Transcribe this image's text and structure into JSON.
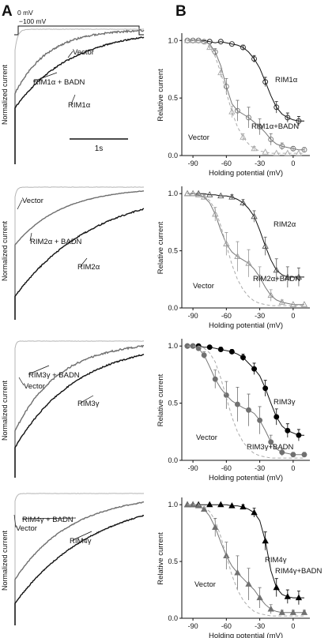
{
  "panel_labels": {
    "a": "A",
    "b": "B"
  },
  "protocol": {
    "top_label": "0 mV",
    "hold_label": "−100 mV"
  },
  "scale_bar_label": "1s",
  "trace_ylabel": "Normalized current",
  "colors": {
    "vector": "#b5b5b5",
    "badn": "#6e6e6e",
    "rim": "#111111"
  },
  "trace_rows": [
    {
      "labels": {
        "vector": "Vector",
        "badn": "RIM1α + BADN",
        "rim": "RIM1α"
      }
    },
    {
      "labels": {
        "vector": "Vector",
        "badn": "RIM2α + BADN",
        "rim": "RIM2α"
      }
    },
    {
      "labels": {
        "vector": "Vector",
        "badn": "RIM3γ + BADN",
        "rim": "RIM3γ"
      }
    },
    {
      "labels": {
        "vector": "Vector",
        "badn": "RIM4γ + BADN",
        "rim": "RIM4γ"
      }
    }
  ],
  "chart_data": [
    {
      "type": "scatter",
      "xlabel": "Holding potential (mV)",
      "ylabel": "Relative current",
      "xlim": [
        -100,
        15
      ],
      "ylim": [
        0,
        1.05
      ],
      "xticks": [
        "-90",
        "-60",
        "-30",
        "0"
      ],
      "yticks": [
        "0.0",
        "0.5",
        "1.0"
      ],
      "x": [
        -95,
        -90,
        -85,
        -80,
        -75,
        -70,
        -65,
        -60,
        -55,
        -50,
        -45,
        -40,
        -35,
        -30,
        -25,
        -20,
        -15,
        -10,
        -5,
        0,
        5,
        10
      ],
      "series": [
        {
          "name": "RIM1α",
          "marker": "circle-open",
          "label_text": "RIM1α",
          "values": [
            1.0,
            1.0,
            1.0,
            1.0,
            0.99,
            0.98,
            0.99,
            0.98,
            0.97,
            0.96,
            0.94,
            0.9,
            0.84,
            0.76,
            0.64,
            0.52,
            0.42,
            0.36,
            0.33,
            0.31,
            0.3,
            0.3
          ],
          "errors": [
            0,
            0,
            0,
            0,
            0.01,
            0.01,
            0.01,
            0.01,
            0.01,
            0.01,
            0.02,
            0.02,
            0.03,
            0.03,
            0.04,
            0.05,
            0.05,
            0.05,
            0.04,
            0.04,
            0.04,
            0.04
          ]
        },
        {
          "name": "RIM1α+BADN",
          "marker": "circle-open-gray",
          "label_text": "RIM1α+BADN",
          "values": [
            1.0,
            1.0,
            1.0,
            0.99,
            0.97,
            0.9,
            0.78,
            0.6,
            0.45,
            0.39,
            0.36,
            0.33,
            0.29,
            0.25,
            0.2,
            0.14,
            0.1,
            0.08,
            0.07,
            0.06,
            0.05,
            0.05
          ],
          "errors": [
            0,
            0,
            0,
            0.01,
            0.02,
            0.03,
            0.05,
            0.07,
            0.08,
            0.09,
            0.09,
            0.09,
            0.08,
            0.07,
            0.06,
            0.05,
            0.04,
            0.03,
            0.02,
            0.02,
            0.02,
            0.02
          ]
        },
        {
          "name": "Vector",
          "marker": "triangle-open-light",
          "label_text": "Vector",
          "values": [
            1.0,
            1.0,
            1.0,
            0.98,
            0.94,
            0.86,
            0.72,
            0.55,
            0.38,
            0.25,
            0.16,
            0.1,
            0.06,
            0.04,
            0.03,
            0.02,
            0.02,
            0.02,
            0.02,
            0.02,
            0.02,
            0.02
          ],
          "errors": [
            0,
            0,
            0,
            0.01,
            0.02,
            0.03,
            0.04,
            0.05,
            0.05,
            0.04,
            0.03,
            0.03,
            0.02,
            0.02,
            0.01,
            0.01,
            0.01,
            0.01,
            0.01,
            0.01,
            0.01,
            0.01
          ]
        }
      ]
    },
    {
      "type": "scatter",
      "xlabel": "Holding potential (mV)",
      "ylabel": "Relative current",
      "xlim": [
        -100,
        15
      ],
      "ylim": [
        0,
        1.05
      ],
      "xticks": [
        "-90",
        "-60",
        "-30",
        "0"
      ],
      "yticks": [
        "0.0",
        "0.5",
        "1.0"
      ],
      "x": [
        -95,
        -90,
        -85,
        -80,
        -75,
        -70,
        -65,
        -60,
        -55,
        -50,
        -45,
        -40,
        -35,
        -30,
        -25,
        -20,
        -15,
        -10,
        -5,
        0,
        5,
        10
      ],
      "series": [
        {
          "name": "RIM2α",
          "marker": "triangle-open",
          "label_text": "RIM2α",
          "values": [
            1.0,
            1.0,
            1.0,
            1.0,
            0.99,
            0.99,
            0.98,
            0.98,
            0.97,
            0.95,
            0.92,
            0.87,
            0.8,
            0.68,
            0.54,
            0.42,
            0.33,
            0.29,
            0.27,
            0.27,
            0.27,
            0.27
          ],
          "errors": [
            0,
            0,
            0,
            0,
            0.01,
            0.01,
            0.01,
            0.01,
            0.02,
            0.02,
            0.03,
            0.04,
            0.05,
            0.06,
            0.08,
            0.09,
            0.1,
            0.1,
            0.09,
            0.09,
            0.08,
            0.08
          ]
        },
        {
          "name": "RIM2α+BADN",
          "marker": "triangle-open-gray",
          "label_text": "RIM2α+BADN",
          "values": [
            1.0,
            1.0,
            0.99,
            0.97,
            0.92,
            0.82,
            0.68,
            0.56,
            0.49,
            0.45,
            0.42,
            0.39,
            0.34,
            0.27,
            0.18,
            0.11,
            0.07,
            0.05,
            0.04,
            0.03,
            0.03,
            0.03
          ],
          "errors": [
            0,
            0,
            0.01,
            0.02,
            0.04,
            0.06,
            0.08,
            0.1,
            0.12,
            0.13,
            0.13,
            0.12,
            0.11,
            0.09,
            0.07,
            0.05,
            0.03,
            0.02,
            0.02,
            0.01,
            0.01,
            0.01
          ]
        },
        {
          "name": "Vector",
          "marker": "line-dashed",
          "label_text": "Vector",
          "values": [
            1.0,
            1.0,
            1.0,
            0.98,
            0.94,
            0.86,
            0.72,
            0.55,
            0.38,
            0.25,
            0.16,
            0.1,
            0.06,
            0.04,
            0.03,
            0.02,
            0.02,
            0.02,
            0.02,
            0.02,
            0.02,
            0.02
          ],
          "errors": []
        }
      ]
    },
    {
      "type": "scatter",
      "xlabel": "Holding potential (mV)",
      "ylabel": "Relative current",
      "xlim": [
        -100,
        15
      ],
      "ylim": [
        0,
        1.05
      ],
      "xticks": [
        "-90",
        "-60",
        "-30",
        "0"
      ],
      "yticks": [
        "0.0",
        "0.5",
        "1.0"
      ],
      "x": [
        -95,
        -90,
        -85,
        -80,
        -75,
        -70,
        -65,
        -60,
        -55,
        -50,
        -45,
        -40,
        -35,
        -30,
        -25,
        -20,
        -15,
        -10,
        -5,
        0,
        5,
        10
      ],
      "series": [
        {
          "name": "RIM3γ",
          "marker": "circle-filled",
          "label_text": "RIM3γ",
          "values": [
            1.0,
            1.0,
            1.0,
            0.99,
            0.99,
            0.98,
            0.97,
            0.96,
            0.95,
            0.93,
            0.9,
            0.85,
            0.8,
            0.74,
            0.63,
            0.5,
            0.38,
            0.3,
            0.26,
            0.24,
            0.22,
            0.22
          ],
          "errors": [
            0,
            0,
            0,
            0.01,
            0.01,
            0.01,
            0.02,
            0.02,
            0.02,
            0.03,
            0.03,
            0.04,
            0.05,
            0.06,
            0.07,
            0.07,
            0.07,
            0.06,
            0.06,
            0.05,
            0.05,
            0.05
          ]
        },
        {
          "name": "RIM3γ+BADN",
          "marker": "circle-filled-gray",
          "label_text": "RIM3γ+BADN",
          "values": [
            1.0,
            1.0,
            0.98,
            0.92,
            0.82,
            0.71,
            0.63,
            0.57,
            0.52,
            0.49,
            0.46,
            0.44,
            0.41,
            0.35,
            0.26,
            0.16,
            0.1,
            0.07,
            0.06,
            0.05,
            0.05,
            0.05
          ],
          "errors": [
            0,
            0,
            0.01,
            0.03,
            0.05,
            0.08,
            0.1,
            0.12,
            0.14,
            0.15,
            0.15,
            0.14,
            0.13,
            0.12,
            0.09,
            0.06,
            0.04,
            0.03,
            0.02,
            0.02,
            0.02,
            0.02
          ]
        },
        {
          "name": "Vector",
          "marker": "line-dashed",
          "label_text": "Vector",
          "values": [
            1.0,
            1.0,
            1.0,
            0.98,
            0.94,
            0.86,
            0.72,
            0.55,
            0.38,
            0.25,
            0.16,
            0.1,
            0.06,
            0.04,
            0.03,
            0.02,
            0.02,
            0.02,
            0.02,
            0.02,
            0.02,
            0.02
          ],
          "errors": []
        }
      ]
    },
    {
      "type": "scatter",
      "xlabel": "Holding potential (mV)",
      "ylabel": "Relative current",
      "xlim": [
        -100,
        15
      ],
      "ylim": [
        0,
        1.05
      ],
      "xticks": [
        "-90",
        "-60",
        "-30",
        "0"
      ],
      "yticks": [
        "0.0",
        "0.5",
        "1.0"
      ],
      "x": [
        -95,
        -90,
        -85,
        -80,
        -75,
        -70,
        -65,
        -60,
        -55,
        -50,
        -45,
        -40,
        -35,
        -30,
        -25,
        -20,
        -15,
        -10,
        -5,
        0,
        5,
        10
      ],
      "series": [
        {
          "name": "RIM4γ",
          "marker": "triangle-filled",
          "label_text": "RIM4γ",
          "values": [
            1.0,
            1.0,
            1.0,
            1.0,
            1.0,
            1.0,
            1.0,
            1.0,
            0.99,
            0.99,
            0.98,
            0.96,
            0.93,
            0.86,
            0.68,
            0.42,
            0.27,
            0.21,
            0.19,
            0.18,
            0.18,
            0.18
          ],
          "errors": [
            0,
            0,
            0,
            0,
            0,
            0.01,
            0.01,
            0.01,
            0.01,
            0.01,
            0.02,
            0.03,
            0.04,
            0.06,
            0.08,
            0.09,
            0.08,
            0.07,
            0.06,
            0.06,
            0.06,
            0.06
          ]
        },
        {
          "name": "RIM4γ+BADN",
          "marker": "triangle-filled-gray",
          "label_text": "RIM4γ+BADN",
          "values": [
            1.0,
            1.0,
            0.99,
            0.96,
            0.9,
            0.8,
            0.67,
            0.55,
            0.46,
            0.4,
            0.35,
            0.3,
            0.25,
            0.18,
            0.12,
            0.08,
            0.06,
            0.05,
            0.05,
            0.05,
            0.05,
            0.05
          ],
          "errors": [
            0,
            0,
            0.01,
            0.02,
            0.05,
            0.08,
            0.1,
            0.12,
            0.14,
            0.15,
            0.15,
            0.14,
            0.12,
            0.09,
            0.06,
            0.04,
            0.03,
            0.02,
            0.02,
            0.02,
            0.02,
            0.02
          ]
        },
        {
          "name": "Vector",
          "marker": "line-dashed",
          "label_text": "Vector",
          "values": [
            1.0,
            1.0,
            1.0,
            0.98,
            0.94,
            0.86,
            0.72,
            0.55,
            0.38,
            0.25,
            0.16,
            0.1,
            0.06,
            0.04,
            0.03,
            0.02,
            0.02,
            0.02,
            0.02,
            0.02,
            0.02,
            0.02
          ],
          "errors": []
        }
      ]
    }
  ]
}
